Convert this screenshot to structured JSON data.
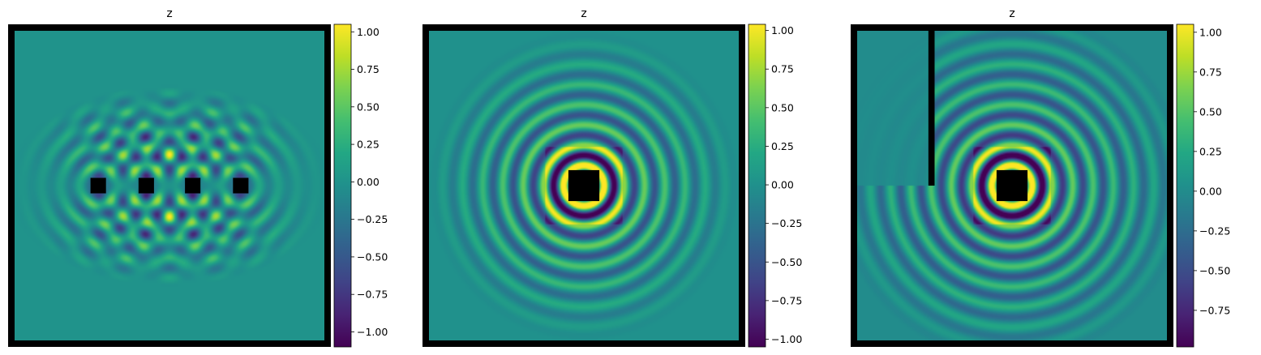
{
  "chart_data": [
    {
      "type": "heatmap",
      "title": "z",
      "colormap": "viridis",
      "border_color": "#000000",
      "obstacle_color": "#000000",
      "grid": false,
      "legend": "none",
      "colorbar": {
        "vmin": -1.1,
        "vmax": 1.05,
        "ticks": [
          1.0,
          0.75,
          0.5,
          0.25,
          0.0,
          -0.25,
          -0.5,
          -0.75,
          -1.0
        ],
        "tick_labels": [
          "1.00",
          "0.75",
          "0.50",
          "0.25",
          "0.00",
          "−0.25",
          "−0.50",
          "−0.75",
          "−1.00"
        ]
      },
      "field": {
        "description_sources": "four wave sources in a row",
        "sources": [
          [
            -0.46,
            0.0
          ],
          [
            -0.15,
            0.0
          ],
          [
            0.15,
            0.0
          ],
          [
            0.46,
            0.0
          ]
        ],
        "obstacles": [
          {
            "cx": -0.46,
            "cy": 0.0,
            "w": 0.1,
            "h": 0.1
          },
          {
            "cx": -0.15,
            "cy": 0.0,
            "w": 0.1,
            "h": 0.1
          },
          {
            "cx": 0.15,
            "cy": 0.0,
            "w": 0.1,
            "h": 0.1
          },
          {
            "cx": 0.46,
            "cy": 0.0,
            "w": 0.1,
            "h": 0.1
          }
        ],
        "wall": null,
        "wavenumber": 50,
        "decay_radius": 0.62
      }
    },
    {
      "type": "heatmap",
      "title": "z",
      "colormap": "viridis",
      "border_color": "#000000",
      "obstacle_color": "#000000",
      "grid": false,
      "legend": "none",
      "colorbar": {
        "vmin": -1.05,
        "vmax": 1.04,
        "ticks": [
          1.0,
          0.75,
          0.5,
          0.25,
          0.0,
          -0.25,
          -0.5,
          -0.75,
          -1.0
        ],
        "tick_labels": [
          "1.00",
          "0.75",
          "0.50",
          "0.25",
          "0.00",
          "−0.25",
          "−0.50",
          "−0.75",
          "−1.00"
        ]
      },
      "field": {
        "sources": [
          [
            0.0,
            0.0
          ]
        ],
        "obstacles": [
          {
            "cx": 0.0,
            "cy": 0.0,
            "w": 0.2,
            "h": 0.2
          }
        ],
        "wall": null,
        "wavenumber": 48,
        "decay_radius": 0.95
      }
    },
    {
      "type": "heatmap",
      "title": "z",
      "colormap": "viridis",
      "border_color": "#000000",
      "obstacle_color": "#000000",
      "grid": false,
      "legend": "none",
      "colorbar": {
        "vmin": -0.98,
        "vmax": 1.05,
        "ticks": [
          1.0,
          0.75,
          0.5,
          0.25,
          0.0,
          -0.25,
          -0.5,
          -0.75
        ],
        "tick_labels": [
          "1.00",
          "0.75",
          "0.50",
          "0.25",
          "0.00",
          "−0.25",
          "−0.50",
          "−0.75"
        ]
      },
      "field": {
        "sources": [
          [
            0.0,
            0.0
          ]
        ],
        "obstacles": [
          {
            "cx": 0.0,
            "cy": 0.0,
            "w": 0.2,
            "h": 0.2
          }
        ],
        "wall": {
          "x": -0.52,
          "y_top": 1.0,
          "y_bottom": 0.0,
          "w": 0.04
        },
        "wavenumber": 48,
        "decay_radius": 1.0
      }
    }
  ]
}
